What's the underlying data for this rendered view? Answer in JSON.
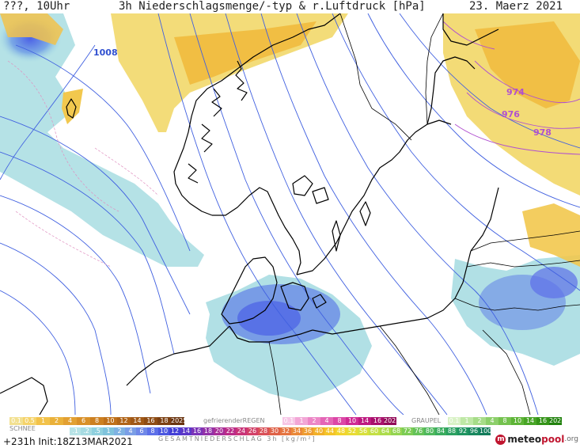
{
  "header": {
    "left": "???, 10Uhr",
    "title": "3h Niederschlagsmenge/-typ & r.Luftdruck [hPa]",
    "date": "23. Maerz 2021"
  },
  "isobar_labels": [
    "1008",
    "974",
    "976",
    "978"
  ],
  "legend": {
    "rain_values": [
      "0.1",
      "0.5",
      "1",
      "2",
      "4",
      "6",
      "8",
      "10",
      "12",
      "14",
      "16",
      "18",
      "2025+"
    ],
    "freezing_rain_title": "gefrierenderREGEN",
    "freezing_values": [
      "0.1",
      "1",
      "2",
      "4",
      "8",
      "10",
      "14",
      "16",
      "2025+"
    ],
    "graupel_title": "GRAUPEL",
    "graupel_values": [
      "0.1",
      "1",
      "2",
      "4",
      "8",
      "10",
      "14",
      "16",
      "2025+"
    ],
    "snow_title": "SCHNEE",
    "snow_values": [
      ".1",
      ".2",
      ".5",
      "1",
      "2",
      "4",
      "6",
      "8",
      "10",
      "12",
      "14",
      "16",
      "18",
      "20",
      "22",
      "24",
      "26",
      "28",
      "30",
      "32",
      "34",
      "36",
      "40",
      "44",
      "48",
      "52",
      "56",
      "60",
      "64",
      "68",
      "72",
      "76",
      "80",
      "84",
      "88",
      "92",
      "96",
      "100"
    ],
    "total_title": "GESAMTNIEDERSCHLAG 3h [kg/m²]"
  },
  "footer": {
    "run_info": "+231h Init:18Z13MAR2021",
    "logo_text": "meteo",
    "logo_bold": "pool",
    "logo_tld": ".org"
  },
  "colors": {
    "rain_scale": [
      "#f2e090",
      "#f5d36a",
      "#f2c24a",
      "#eab13a",
      "#e2a032",
      "#d99028",
      "#cc7f20",
      "#bf701a",
      "#b06418",
      "#a05816",
      "#8e4c14",
      "#7c4012",
      "#6a3410"
    ],
    "freezing_scale": [
      "#f7c6e6",
      "#f2a6d6",
      "#ec86c6",
      "#e466b6",
      "#dc46a6",
      "#cf2a94",
      "#bd1a80",
      "#a80f6c",
      "#920a58"
    ],
    "graupel_scale": [
      "#d9f2c6",
      "#bfe8a6",
      "#a6dc88",
      "#8ccf6a",
      "#74c24e",
      "#5db436",
      "#48a526",
      "#349418",
      "#22820e"
    ],
    "snow_scale": [
      "#b7e3e6",
      "#a6dbe2",
      "#8fd0de",
      "#7fc3dc",
      "#7eb2e2",
      "#7a9ee6",
      "#6f88e8",
      "#5c6fe8",
      "#4b57e0",
      "#433fd6",
      "#5b37c8",
      "#7a33b8",
      "#9231a8",
      "#a82e98",
      "#bb2c88",
      "#c93478",
      "#d24068",
      "#d95058",
      "#df6248",
      "#e57440",
      "#ea8838",
      "#ee9c30",
      "#f2b028",
      "#f4c428",
      "#f2d42c",
      "#e8dc34",
      "#d8e03c",
      "#c4e044",
      "#acdc4c",
      "#94d450",
      "#7ccc54",
      "#64c258",
      "#4eb85c",
      "#3aac5e",
      "#2aa060",
      "#1e9460",
      "#18885e",
      "#127c5a"
    ],
    "isobar": "#4060e0",
    "isobar_low": "#b050d0",
    "accent": "#c0152f"
  }
}
